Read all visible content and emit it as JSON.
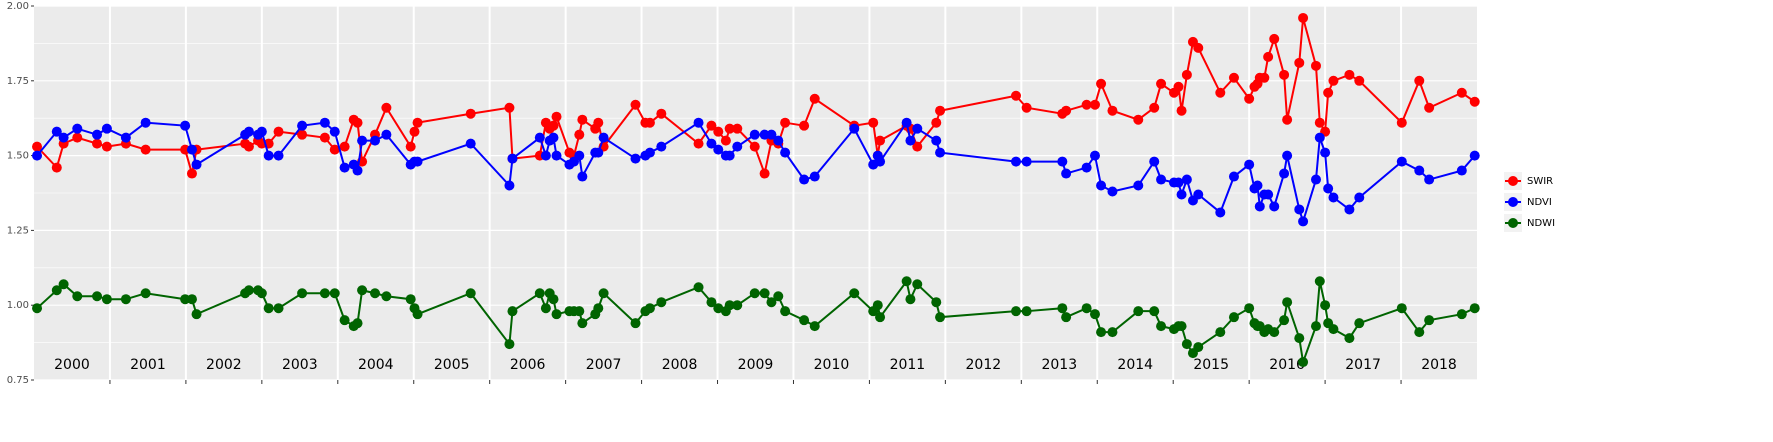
{
  "chart_data": {
    "type": "line",
    "x": [
      2000.04,
      2000.3,
      2000.39,
      2000.57,
      2000.83,
      2000.96,
      2001.21,
      2001.47,
      2001.99,
      2002.08,
      2002.14,
      2002.78,
      2002.83,
      2002.95,
      2003.0,
      2003.09,
      2003.22,
      2003.53,
      2003.83,
      2003.96,
      2004.09,
      2004.21,
      2004.26,
      2004.32,
      2004.49,
      2004.64,
      2004.96,
      2005.01,
      2005.05,
      2005.75,
      2006.26,
      2006.3,
      2006.66,
      2006.74,
      2006.79,
      2006.84,
      2006.88,
      2007.05,
      2007.11,
      2007.18,
      2007.22,
      2007.39,
      2007.43,
      2007.5,
      2007.92,
      2008.05,
      2008.11,
      2008.26,
      2008.75,
      2008.92,
      2009.01,
      2009.11,
      2009.16,
      2009.26,
      2009.49,
      2009.62,
      2009.71,
      2009.8,
      2009.89,
      2010.14,
      2010.28,
      2010.8,
      2011.05,
      2011.11,
      2011.14,
      2011.49,
      2011.54,
      2011.63,
      2011.88,
      2011.93,
      2012.93,
      2013.07,
      2013.54,
      2013.59,
      2013.86,
      2013.97,
      2014.05,
      2014.2,
      2014.54,
      2014.75,
      2014.84,
      2015.01,
      2015.07,
      2015.11,
      2015.18,
      2015.26,
      2015.33,
      2015.62,
      2015.8,
      2016.0,
      2016.07,
      2016.11,
      2016.14,
      2016.2,
      2016.25,
      2016.33,
      2016.46,
      2016.5,
      2016.66,
      2016.71,
      2016.88,
      2016.93,
      2017.0,
      2017.04,
      2017.11,
      2017.32,
      2017.45,
      2018.01,
      2018.24,
      2018.37,
      2018.8,
      2018.97
    ],
    "series": [
      {
        "name": "SWIR",
        "color": "#ff0000",
        "values": [
          1.53,
          1.46,
          1.54,
          1.56,
          1.54,
          1.53,
          1.54,
          1.52,
          1.52,
          1.44,
          1.52,
          1.54,
          1.53,
          1.55,
          1.54,
          1.54,
          1.58,
          1.57,
          1.56,
          1.52,
          1.53,
          1.62,
          1.61,
          1.48,
          1.57,
          1.66,
          1.53,
          1.58,
          1.61,
          1.64,
          1.66,
          1.49,
          1.5,
          1.61,
          1.59,
          1.6,
          1.63,
          1.51,
          1.5,
          1.57,
          1.62,
          1.59,
          1.61,
          1.53,
          1.67,
          1.61,
          1.61,
          1.64,
          1.54,
          1.6,
          1.58,
          1.55,
          1.59,
          1.59,
          1.53,
          1.44,
          1.55,
          1.54,
          1.61,
          1.6,
          1.69,
          1.6,
          1.61,
          1.5,
          1.55,
          1.6,
          1.59,
          1.53,
          1.61,
          1.65,
          1.7,
          1.66,
          1.64,
          1.65,
          1.67,
          1.67,
          1.74,
          1.65,
          1.62,
          1.66,
          1.74,
          1.71,
          1.73,
          1.65,
          1.77,
          1.88,
          1.86,
          1.71,
          1.76,
          1.69,
          1.73,
          1.74,
          1.76,
          1.76,
          1.83,
          1.89,
          1.77,
          1.62,
          1.81,
          1.96,
          1.8,
          1.61,
          1.58,
          1.71,
          1.75,
          1.77,
          1.75,
          1.61,
          1.75,
          1.66,
          1.71,
          1.68
        ]
      },
      {
        "name": "NDVI",
        "color": "#0000ff",
        "values": [
          1.5,
          1.58,
          1.56,
          1.59,
          1.57,
          1.59,
          1.56,
          1.61,
          1.6,
          1.52,
          1.47,
          1.57,
          1.58,
          1.57,
          1.58,
          1.5,
          1.5,
          1.6,
          1.61,
          1.58,
          1.46,
          1.47,
          1.45,
          1.55,
          1.55,
          1.57,
          1.47,
          1.48,
          1.48,
          1.54,
          1.4,
          1.49,
          1.56,
          1.5,
          1.55,
          1.56,
          1.5,
          1.47,
          1.48,
          1.5,
          1.43,
          1.51,
          1.51,
          1.56,
          1.49,
          1.5,
          1.51,
          1.53,
          1.61,
          1.54,
          1.52,
          1.5,
          1.5,
          1.53,
          1.57,
          1.57,
          1.57,
          1.55,
          1.51,
          1.42,
          1.43,
          1.59,
          1.47,
          1.5,
          1.48,
          1.61,
          1.55,
          1.59,
          1.55,
          1.51,
          1.48,
          1.48,
          1.48,
          1.44,
          1.46,
          1.5,
          1.4,
          1.38,
          1.4,
          1.48,
          1.42,
          1.41,
          1.41,
          1.37,
          1.42,
          1.35,
          1.37,
          1.31,
          1.43,
          1.47,
          1.39,
          1.4,
          1.33,
          1.37,
          1.37,
          1.33,
          1.44,
          1.5,
          1.32,
          1.28,
          1.42,
          1.56,
          1.51,
          1.39,
          1.36,
          1.32,
          1.36,
          1.48,
          1.45,
          1.42,
          1.45,
          1.5
        ]
      },
      {
        "name": "NDWI",
        "color": "#006400",
        "values": [
          0.99,
          1.05,
          1.07,
          1.03,
          1.03,
          1.02,
          1.02,
          1.04,
          1.02,
          1.02,
          0.97,
          1.04,
          1.05,
          1.05,
          1.04,
          0.99,
          0.99,
          1.04,
          1.04,
          1.04,
          0.95,
          0.93,
          0.94,
          1.05,
          1.04,
          1.03,
          1.02,
          0.99,
          0.97,
          1.04,
          0.87,
          0.98,
          1.04,
          0.99,
          1.04,
          1.02,
          0.97,
          0.98,
          0.98,
          0.98,
          0.94,
          0.97,
          0.99,
          1.04,
          0.94,
          0.98,
          0.99,
          1.01,
          1.06,
          1.01,
          0.99,
          0.98,
          1.0,
          1.0,
          1.04,
          1.04,
          1.01,
          1.03,
          0.98,
          0.95,
          0.93,
          1.04,
          0.98,
          1.0,
          0.96,
          1.08,
          1.02,
          1.07,
          1.01,
          0.96,
          0.98,
          0.98,
          0.99,
          0.96,
          0.99,
          0.97,
          0.91,
          0.91,
          0.98,
          0.98,
          0.93,
          0.92,
          0.93,
          0.93,
          0.87,
          0.84,
          0.86,
          0.91,
          0.96,
          0.99,
          0.94,
          0.93,
          0.93,
          0.91,
          0.92,
          0.91,
          0.95,
          1.01,
          0.89,
          0.81,
          0.93,
          1.08,
          1.0,
          0.94,
          0.92,
          0.89,
          0.94,
          0.99,
          0.91,
          0.95,
          0.97,
          0.99
        ]
      }
    ],
    "xlim": [
      2000,
      2019
    ],
    "xticks": [
      2001,
      2002,
      2003,
      2004,
      2005,
      2006,
      2007,
      2008,
      2009,
      2010,
      2011,
      2012,
      2013,
      2014,
      2015,
      2016,
      2017,
      2018
    ],
    "ylim": [
      0.75,
      2
    ],
    "yticks": [
      0.75,
      {
        "value": 1,
        "label": "1.00"
      },
      1.25,
      {
        "value": 1.5,
        "label": "1.50"
      },
      1.75,
      {
        "value": 2,
        "label": "2.00"
      }
    ],
    "grid": true,
    "legend": "right",
    "annotations": [
      {
        "text": "2000",
        "x": 2000.5,
        "y": 0.8
      },
      {
        "text": "2001",
        "x": 2001.5,
        "y": 0.8
      },
      {
        "text": "2002",
        "x": 2002.5,
        "y": 0.8
      },
      {
        "text": "2003",
        "x": 2003.5,
        "y": 0.8
      },
      {
        "text": "2004",
        "x": 2004.5,
        "y": 0.8
      },
      {
        "text": "2005",
        "x": 2005.5,
        "y": 0.8
      },
      {
        "text": "2006",
        "x": 2006.5,
        "y": 0.8
      },
      {
        "text": "2007",
        "x": 2007.5,
        "y": 0.8
      },
      {
        "text": "2008",
        "x": 2008.5,
        "y": 0.8
      },
      {
        "text": "2009",
        "x": 2009.5,
        "y": 0.8
      },
      {
        "text": "2010",
        "x": 2010.5,
        "y": 0.8
      },
      {
        "text": "2011",
        "x": 2011.5,
        "y": 0.8
      },
      {
        "text": "2012",
        "x": 2012.5,
        "y": 0.8
      },
      {
        "text": "2013",
        "x": 2013.5,
        "y": 0.8
      },
      {
        "text": "2014",
        "x": 2014.5,
        "y": 0.8
      },
      {
        "text": "2015",
        "x": 2015.5,
        "y": 0.8
      },
      {
        "text": "2016",
        "x": 2016.5,
        "y": 0.8
      },
      {
        "text": "2017",
        "x": 2017.5,
        "y": 0.8
      },
      {
        "text": "2018",
        "x": 2018.5,
        "y": 0.8
      }
    ]
  }
}
